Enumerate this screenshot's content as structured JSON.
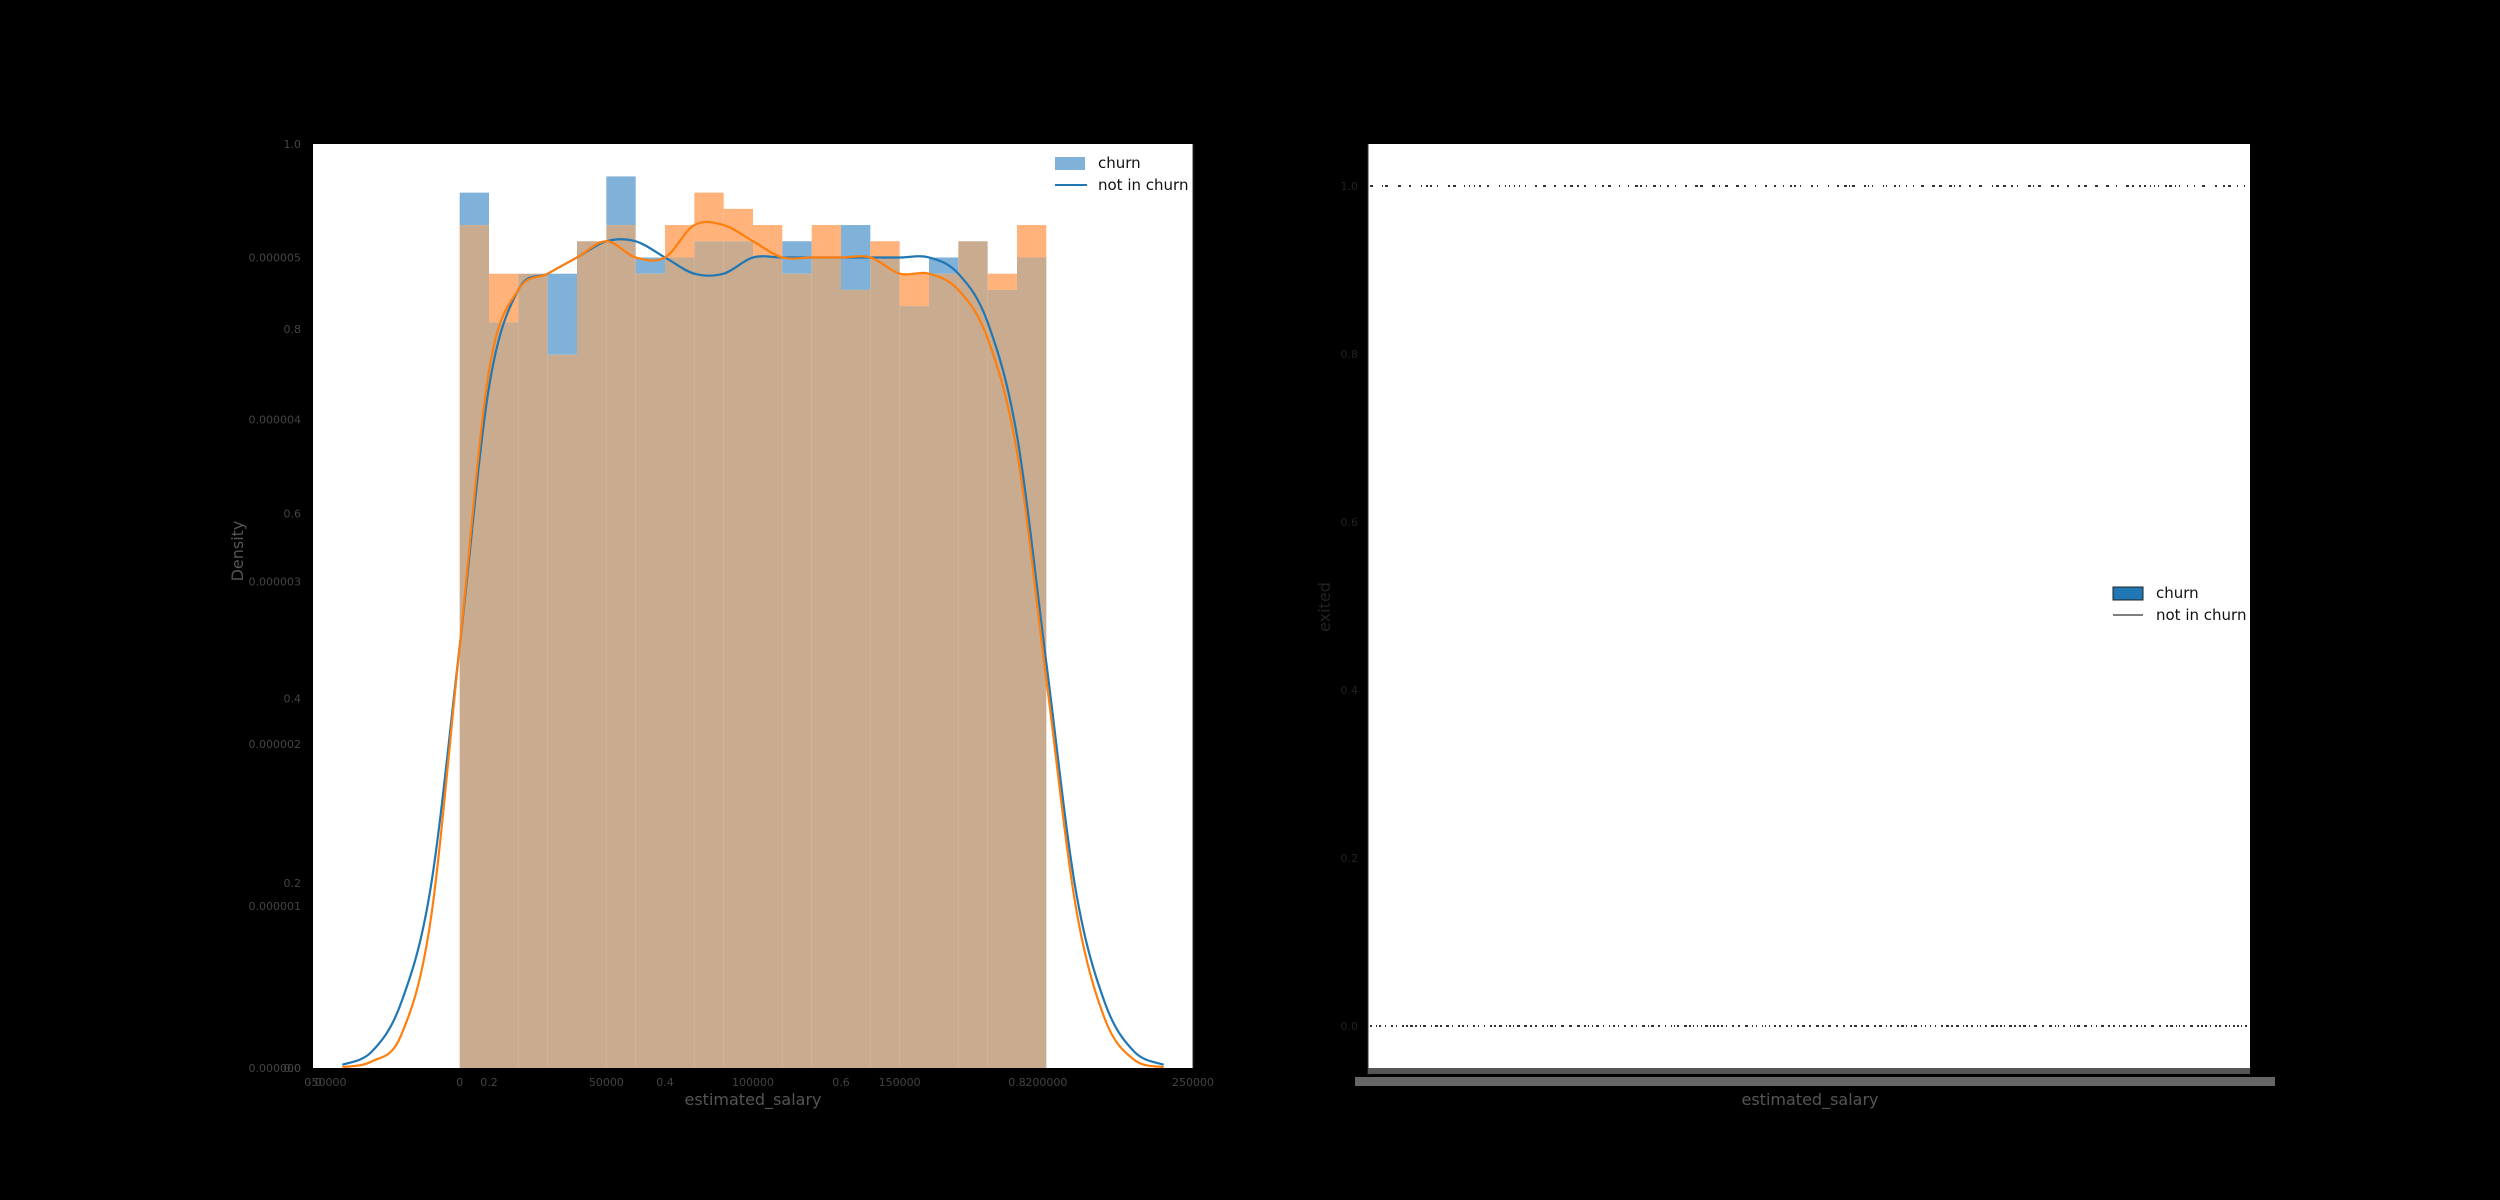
{
  "colors": {
    "churn": "#7fb1d9",
    "churn_line": "#1f77b4",
    "not_churn": "#ffb27a",
    "not_churn_line": "#ff7f0e",
    "overlap": "#c9ab8f"
  },
  "chart_data": [
    {
      "type": "bar",
      "subtype": "histogram-with-kde",
      "xlabel": "estimated_salary",
      "ylabel": "Density",
      "xlim": [
        -50000,
        250000
      ],
      "ylim": [
        0,
        5.7e-06
      ],
      "x_ticks": [
        0,
        50000,
        100000,
        150000,
        200000,
        250000
      ],
      "x_tick_labels": [
        "0",
        "50000",
        "100000",
        "150000",
        "200000",
        "250000"
      ],
      "x_extra_label": "-50000",
      "y_ticks": [
        0,
        1e-06,
        2e-06,
        3e-06,
        4e-06,
        5e-06
      ],
      "y_tick_labels": [
        "0.000000",
        "0.000001",
        "0.000002",
        "0.000003",
        "0.000004",
        "0.000005"
      ],
      "shadow_ticks": [
        "0.0",
        "0.2",
        "0.4",
        "0.6",
        "0.8",
        "1.0"
      ],
      "legend_position": "top-right",
      "bin_edges": [
        0,
        10000,
        20000,
        30000,
        40000,
        50000,
        60000,
        70000,
        80000,
        90000,
        100000,
        110000,
        120000,
        130000,
        140000,
        150000,
        160000,
        170000,
        180000,
        190000,
        200000
      ],
      "series": [
        {
          "name": "churn",
          "values": [
            5.4e-06,
            4.6e-06,
            4.9e-06,
            4.9e-06,
            5.1e-06,
            5.5e-06,
            5e-06,
            5e-06,
            5.1e-06,
            5.1e-06,
            5e-06,
            5.1e-06,
            5e-06,
            5.2e-06,
            5e-06,
            4.7e-06,
            5e-06,
            5.1e-06,
            4.8e-06,
            5e-06
          ],
          "kde_x": [
            -40000,
            -30000,
            -20000,
            -10000,
            0,
            10000,
            20000,
            30000,
            40000,
            50000,
            60000,
            70000,
            80000,
            90000,
            100000,
            110000,
            120000,
            130000,
            140000,
            150000,
            160000,
            170000,
            180000,
            190000,
            200000,
            210000,
            220000,
            230000,
            240000
          ],
          "kde_y": [
            2e-08,
            1e-07,
            4e-07,
            1.1e-06,
            2.6e-06,
            4.2e-06,
            4.8e-06,
            4.9e-06,
            5e-06,
            5.1e-06,
            5.1e-06,
            5e-06,
            4.9e-06,
            4.9e-06,
            5e-06,
            5e-06,
            5e-06,
            5e-06,
            5e-06,
            5e-06,
            5e-06,
            4.9e-06,
            4.6e-06,
            3.9e-06,
            2.5e-06,
            1.1e-06,
            4e-07,
            1e-07,
            2e-08
          ]
        },
        {
          "name": "not in churn",
          "values": [
            5.2e-06,
            4.9e-06,
            4.9e-06,
            4.4e-06,
            5.1e-06,
            5.2e-06,
            4.9e-06,
            5.2e-06,
            5.4e-06,
            5.3e-06,
            5.2e-06,
            4.9e-06,
            5.2e-06,
            4.8e-06,
            5.1e-06,
            4.9e-06,
            4.9e-06,
            5.1e-06,
            4.9e-06,
            5.2e-06
          ],
          "kde_x": [
            -40000,
            -30000,
            -20000,
            -10000,
            0,
            10000,
            20000,
            30000,
            40000,
            50000,
            60000,
            70000,
            80000,
            90000,
            100000,
            110000,
            120000,
            130000,
            140000,
            150000,
            160000,
            170000,
            180000,
            190000,
            200000,
            210000,
            220000,
            230000,
            240000
          ],
          "kde_y": [
            5e-09,
            4e-08,
            2e-07,
            9e-07,
            2.6e-06,
            4.3e-06,
            4.8e-06,
            4.9e-06,
            5e-06,
            5.1e-06,
            5e-06,
            5e-06,
            5.2e-06,
            5.2e-06,
            5.1e-06,
            5e-06,
            5e-06,
            5e-06,
            5e-06,
            4.9e-06,
            4.9e-06,
            4.8e-06,
            4.5e-06,
            3.8e-06,
            2.4e-06,
            1e-06,
            3e-07,
            5e-08,
            5e-09
          ]
        }
      ]
    },
    {
      "type": "scatter",
      "subtype": "strip",
      "xlabel": "estimated_salary",
      "ylabel": "exited",
      "ylim": [
        -0.05,
        1.05
      ],
      "y_ticks": [
        0.0,
        0.2,
        0.4,
        0.6,
        0.8,
        1.0
      ],
      "y_tick_labels": [
        "0.0",
        "0.2",
        "0.4",
        "0.6",
        "0.8",
        "1.0"
      ],
      "legend_position": "center-right",
      "legend": [
        "churn",
        "not in churn"
      ],
      "strip_levels": [
        0.0,
        1.0
      ]
    }
  ]
}
